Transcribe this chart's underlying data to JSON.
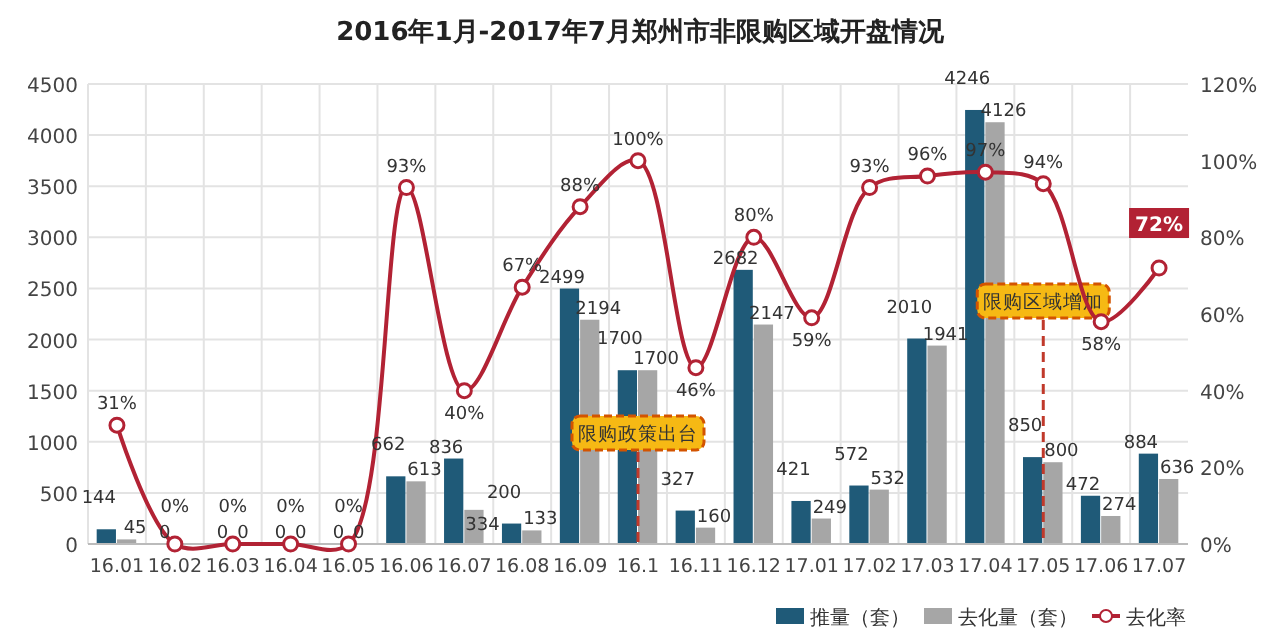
{
  "chart_data": {
    "type": "bar",
    "title": "2016年1月-2017年7月郑州市非限购区域开盘情况",
    "categories": [
      "16.01",
      "16.02",
      "16.03",
      "16.04",
      "16.05",
      "16.06",
      "16.07",
      "16.08",
      "16.09",
      "16.1",
      "16.11",
      "16.12",
      "17.01",
      "17.02",
      "17.03",
      "17.04",
      "17.05",
      "17.06",
      "17.07"
    ],
    "series": [
      {
        "name": "推量（套）",
        "color": "#1f5a78",
        "values": [
          144,
          0,
          0,
          0,
          0,
          662,
          836,
          200,
          2499,
          1700,
          327,
          2682,
          421,
          572,
          2010,
          4246,
          850,
          472,
          884
        ],
        "value_labels": [
          "144",
          "0",
          "0",
          "0",
          "0",
          "662",
          "836",
          "200",
          "2499",
          "1700",
          "327",
          "2682",
          "421",
          "572",
          "2010",
          "4246",
          "850",
          "472",
          "884"
        ]
      },
      {
        "name": "去化量（套）",
        "color": "#a6a6a6",
        "values": [
          45,
          0,
          0,
          0,
          0,
          613,
          334,
          133,
          2194,
          1700,
          160,
          2147,
          249,
          532,
          1941,
          4126,
          800,
          274,
          636
        ],
        "value_labels": [
          "45",
          null,
          "0",
          "0",
          "0",
          "613",
          "334",
          "133",
          "2194",
          "1700",
          "160",
          "2147",
          "249",
          "532",
          "1941",
          "4126",
          "800",
          "274",
          "636"
        ]
      },
      {
        "name": "去化率",
        "type": "line",
        "axis": "y2",
        "color": "#b22234",
        "marker": "circle",
        "values": [
          31,
          0,
          0,
          0,
          0,
          93,
          40,
          67,
          88,
          100,
          46,
          80,
          59,
          93,
          96,
          97,
          94,
          58,
          72
        ],
        "value_labels": [
          "31%",
          "0%",
          "0%",
          "0%",
          "0%",
          "93%",
          "40%",
          "67%",
          "88%",
          "100%",
          "46%",
          "80%",
          "59%",
          "93%",
          "96%",
          "97%",
          "94%",
          "58%",
          "72%"
        ]
      }
    ],
    "ylim": [
      0,
      4500
    ],
    "yticks": [
      0,
      500,
      1000,
      1500,
      2000,
      2500,
      3000,
      3500,
      4000,
      4500
    ],
    "y2lim": [
      0,
      120
    ],
    "y2ticks": [
      {
        "value": 0,
        "label": "0%"
      },
      {
        "value": 20,
        "label": "20%"
      },
      {
        "value": 40,
        "label": "40%"
      },
      {
        "value": 60,
        "label": "60%"
      },
      {
        "value": 80,
        "label": "80%"
      },
      {
        "value": 100,
        "label": "100%"
      },
      {
        "value": 120,
        "label": "120%"
      }
    ],
    "ref_lines": [
      {
        "axis": "x",
        "value": "16.1",
        "label": "限购政策出台",
        "color": "#c0392b",
        "line_style": "dashed"
      },
      {
        "axis": "x",
        "value": "17.05",
        "label": "限购区域增加",
        "color": "#c0392b",
        "line_style": "dashed"
      }
    ],
    "grid": true,
    "legend": "bottom right"
  }
}
